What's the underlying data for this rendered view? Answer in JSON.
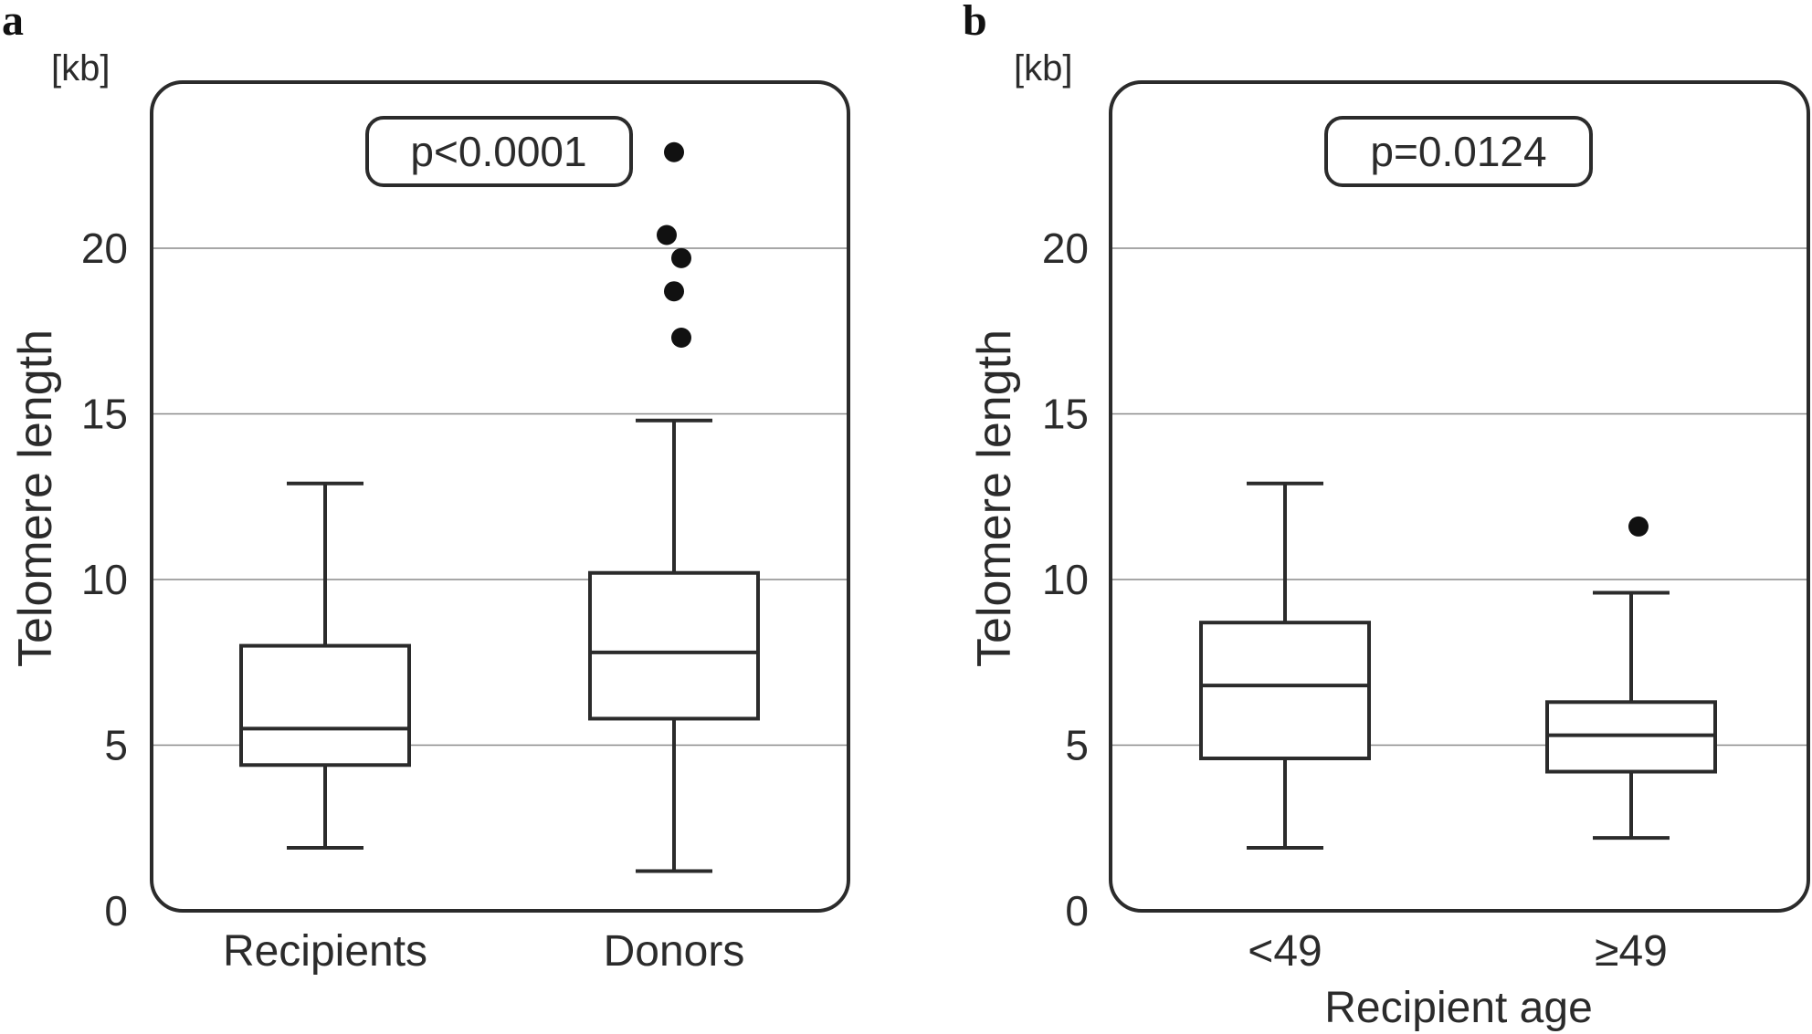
{
  "chart_data": [
    {
      "panel_label": "a",
      "type": "box",
      "categories": [
        "Recipients",
        "Donors"
      ],
      "ylabel": "Telomere length",
      "unit": "[kb]",
      "ylim": [
        0,
        24.5
      ],
      "yticks": [
        "0",
        "5",
        "10",
        "15",
        "20"
      ],
      "ytick_values": [
        0,
        5,
        10,
        15,
        20
      ],
      "grid": true,
      "annotation": "p<0.0001",
      "boxes": [
        {
          "category": "Recipients",
          "whisker_low": 1.9,
          "q1": 4.4,
          "median": 5.5,
          "q3": 8.0,
          "whisker_high": 12.9,
          "outliers": []
        },
        {
          "category": "Donors",
          "whisker_low": 1.2,
          "q1": 5.8,
          "median": 7.8,
          "q3": 10.2,
          "whisker_high": 14.8,
          "outliers": [
            22.9,
            20.4,
            19.7,
            18.7,
            17.3
          ]
        }
      ]
    },
    {
      "panel_label": "b",
      "type": "box",
      "categories": [
        "<49",
        "≥49"
      ],
      "xlabel": "Recipient age",
      "ylabel": "Telomere length",
      "unit": "[kb]",
      "ylim": [
        0,
        24.5
      ],
      "yticks": [
        "0",
        "5",
        "10",
        "15",
        "20"
      ],
      "ytick_values": [
        0,
        5,
        10,
        15,
        20
      ],
      "grid": true,
      "annotation": "p=0.0124",
      "boxes": [
        {
          "category": "<49",
          "whisker_low": 1.9,
          "q1": 4.6,
          "median": 6.8,
          "q3": 8.7,
          "whisker_high": 12.9,
          "outliers": []
        },
        {
          "category": "≥49",
          "whisker_low": 2.2,
          "q1": 4.2,
          "median": 5.3,
          "q3": 6.3,
          "whisker_high": 9.6,
          "outliers": [
            11.6
          ]
        }
      ]
    }
  ]
}
